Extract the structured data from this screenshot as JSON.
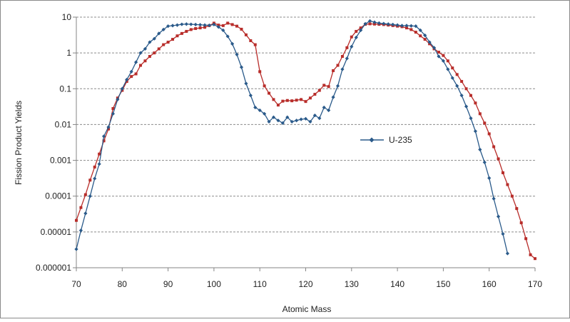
{
  "chart_data": {
    "type": "line",
    "xlabel": "Atomic Mass",
    "ylabel": "Fission Product Yields",
    "x_ticks": [
      "70",
      "80",
      "90",
      "100",
      "110",
      "120",
      "130",
      "140",
      "150",
      "160",
      "170"
    ],
    "y_ticks": [
      "0.000001",
      "0.00001",
      "0.0001",
      "0.001",
      "0.01",
      "0.1",
      "1",
      "10"
    ],
    "xlim": [
      70,
      170
    ],
    "ylim": [
      1e-06,
      10
    ],
    "yscale": "log",
    "grid": "horizontal dashed",
    "legend_placement": "inside-center-right",
    "series": [
      {
        "name": "U-235",
        "color": "#2a5a8a",
        "marker": "diamond",
        "x": [
          70,
          71,
          72,
          73,
          74,
          75,
          76,
          77,
          78,
          79,
          80,
          81,
          82,
          83,
          84,
          85,
          86,
          87,
          88,
          89,
          90,
          91,
          92,
          93,
          94,
          95,
          96,
          97,
          98,
          99,
          100,
          101,
          102,
          103,
          104,
          105,
          106,
          107,
          108,
          109,
          110,
          111,
          112,
          113,
          114,
          115,
          116,
          117,
          118,
          119,
          120,
          121,
          122,
          123,
          124,
          125,
          126,
          127,
          128,
          129,
          130,
          131,
          132,
          133,
          134,
          135,
          136,
          137,
          138,
          139,
          140,
          141,
          142,
          143,
          144,
          145,
          146,
          147,
          148,
          149,
          150,
          151,
          152,
          153,
          154,
          155,
          156,
          157,
          158,
          159,
          160,
          161,
          162,
          163,
          164
        ],
        "y": [
          3.3e-06,
          1.1e-05,
          3.3e-05,
          0.0001,
          0.00031,
          0.00079,
          0.0047,
          0.0085,
          0.02,
          0.05,
          0.1,
          0.18,
          0.3,
          0.55,
          1,
          1.3,
          2,
          2.5,
          3.5,
          4.5,
          5.6,
          5.8,
          6,
          6.3,
          6.4,
          6.3,
          6.2,
          6.1,
          6,
          5.9,
          6.2,
          5.3,
          4.3,
          2.9,
          1.8,
          0.9,
          0.4,
          0.14,
          0.065,
          0.03,
          0.025,
          0.02,
          0.012,
          0.016,
          0.013,
          0.011,
          0.016,
          0.012,
          0.013,
          0.014,
          0.0145,
          0.012,
          0.018,
          0.015,
          0.03,
          0.025,
          0.058,
          0.12,
          0.35,
          0.7,
          1.5,
          2.7,
          4.3,
          6.5,
          7.8,
          7.2,
          6.8,
          6.6,
          6.4,
          6.2,
          6.0,
          5.8,
          5.8,
          5.7,
          5.6,
          4.3,
          3.1,
          2,
          1.4,
          0.8,
          0.6,
          0.35,
          0.2,
          0.12,
          0.065,
          0.032,
          0.015,
          0.0065,
          0.002,
          0.00088,
          0.00032,
          8.5e-05,
          2.7e-05,
          8.8e-06,
          2.5e-06
        ]
      },
      {
        "color": "#b82d2a",
        "marker": "square",
        "x": [
          70,
          71,
          72,
          73,
          74,
          75,
          76,
          77,
          78,
          79,
          80,
          81,
          82,
          83,
          84,
          85,
          86,
          87,
          88,
          89,
          90,
          91,
          92,
          93,
          94,
          95,
          96,
          97,
          98,
          99,
          100,
          101,
          102,
          103,
          104,
          105,
          106,
          107,
          108,
          109,
          110,
          111,
          112,
          113,
          114,
          115,
          116,
          117,
          118,
          119,
          120,
          121,
          122,
          123,
          124,
          125,
          126,
          127,
          128,
          129,
          130,
          131,
          132,
          133,
          134,
          135,
          136,
          137,
          138,
          139,
          140,
          141,
          142,
          143,
          144,
          145,
          146,
          147,
          148,
          149,
          150,
          151,
          152,
          153,
          154,
          155,
          156,
          157,
          158,
          159,
          160,
          161,
          162,
          163,
          164,
          165,
          166,
          167,
          168,
          169,
          170
        ],
        "y": [
          2.1e-05,
          4.8e-05,
          0.00011,
          0.00028,
          0.00065,
          0.0015,
          0.0035,
          0.0075,
          0.028,
          0.055,
          0.09,
          0.16,
          0.22,
          0.26,
          0.45,
          0.6,
          0.8,
          1,
          1.3,
          1.7,
          2,
          2.4,
          3,
          3.5,
          4,
          4.5,
          4.8,
          5,
          5.2,
          5.8,
          6.8,
          6,
          5.8,
          6.8,
          6.2,
          5.6,
          4.6,
          3.2,
          2.2,
          1.7,
          0.3,
          0.12,
          0.075,
          0.05,
          0.035,
          0.045,
          0.047,
          0.046,
          0.048,
          0.05,
          0.044,
          0.055,
          0.07,
          0.09,
          0.125,
          0.115,
          0.32,
          0.45,
          0.8,
          1.4,
          2.8,
          4,
          5,
          6.3,
          6.5,
          6.4,
          6.3,
          6.2,
          6,
          5.8,
          5.6,
          5.4,
          5.0,
          4.5,
          3.8,
          3.0,
          2.4,
          1.8,
          1.3,
          1.05,
          0.85,
          0.6,
          0.38,
          0.25,
          0.16,
          0.1,
          0.065,
          0.04,
          0.02,
          0.011,
          0.0055,
          0.0024,
          0.0011,
          0.00045,
          0.00021,
          0.0001,
          4.5e-05,
          1.8e-05,
          6.5e-06,
          2.3e-06,
          1.8e-06
        ]
      }
    ]
  }
}
